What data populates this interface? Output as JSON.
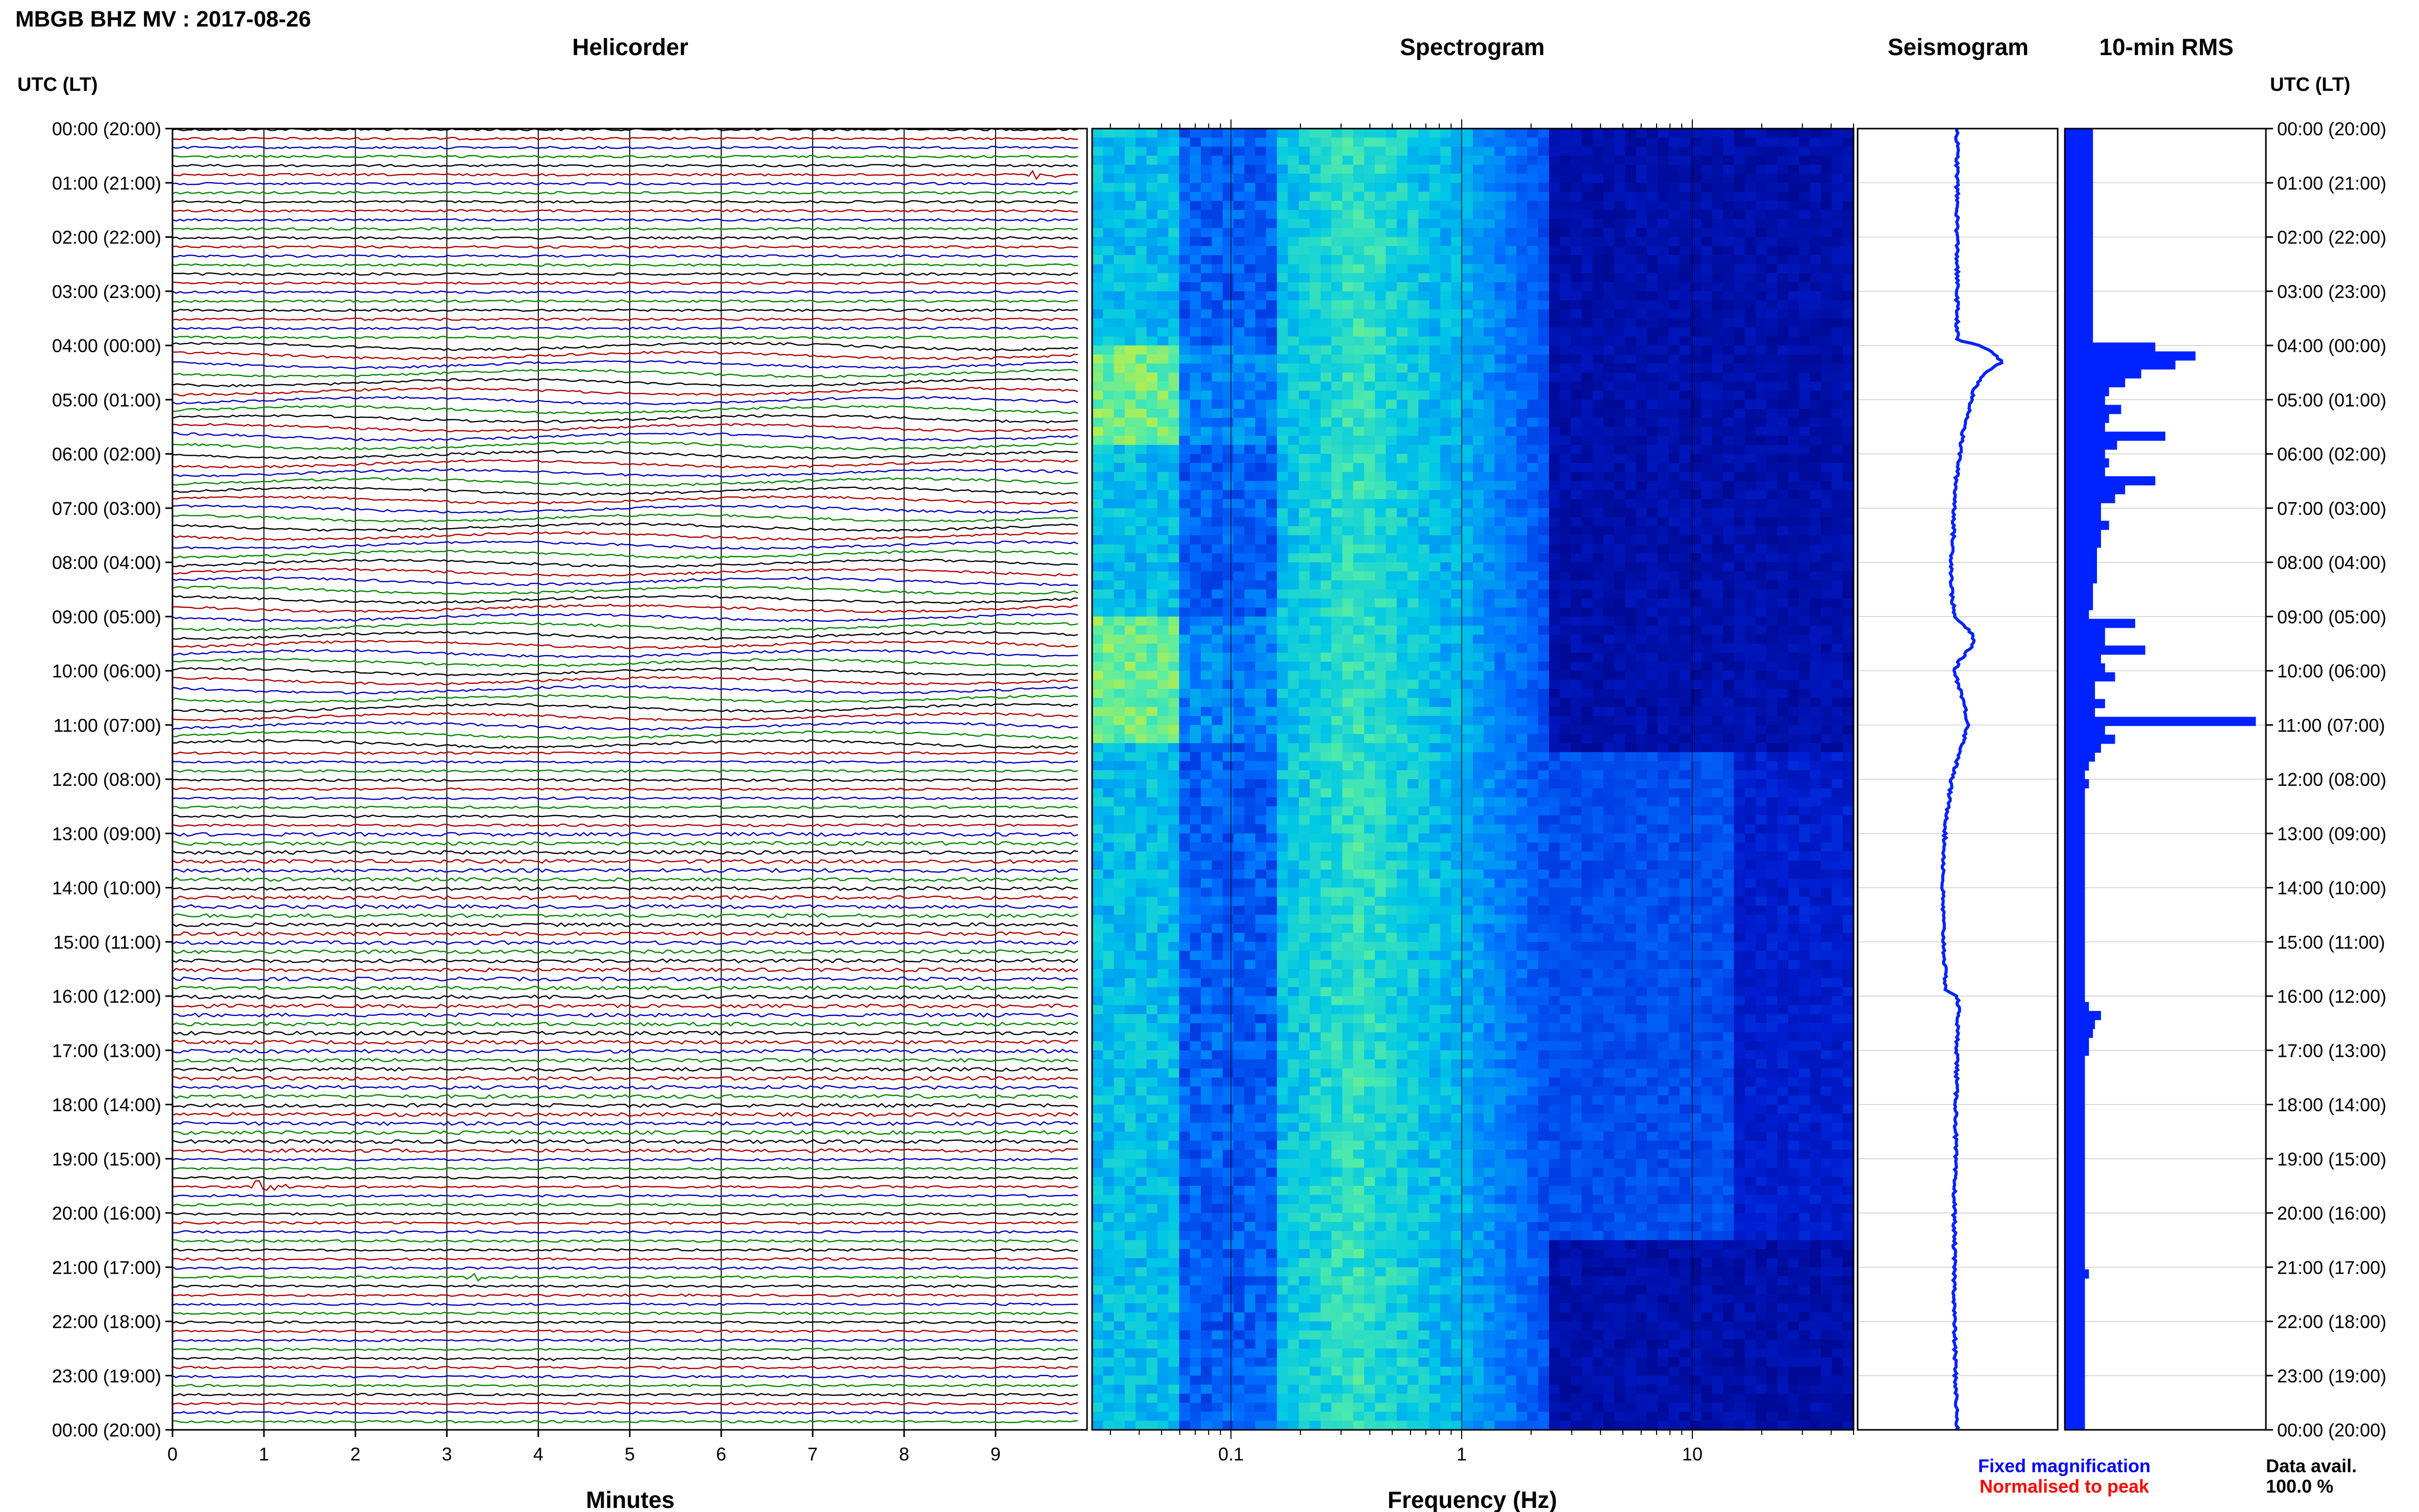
{
  "header": {
    "title": "MBGB BHZ MV : 2017-08-26",
    "utc_label_left": "UTC (LT)",
    "utc_label_right": "UTC (LT)"
  },
  "panels": {
    "helicorder": "Helicorder",
    "spectrogram": "Spectrogram",
    "seismogram": "Seismogram",
    "rms": "10-min RMS"
  },
  "footer": {
    "fixed_magnification": "Fixed magnification",
    "normalised_to_peak": "Normalised to peak",
    "data_avail_label": "Data avail.",
    "data_avail_value": "100.0 %"
  },
  "colors": {
    "trace_cycle": [
      "#000000",
      "#b00000",
      "#0000c0",
      "#008800"
    ],
    "fixed_magnification": "#0000ff",
    "normalised_to_peak": "#ff0000",
    "seismogram": "#0022ff",
    "rms": "#0022ff"
  },
  "chart_data": [
    {
      "type": "line",
      "title": "Helicorder",
      "xlabel": "Minutes",
      "x_ticks": [
        "0",
        "1",
        "2",
        "3",
        "4",
        "5",
        "6",
        "7",
        "8",
        "9"
      ],
      "xlim": [
        0,
        10
      ],
      "y_ticks": [
        "00:00 (20:00)",
        "01:00 (21:00)",
        "02:00 (22:00)",
        "03:00 (23:00)",
        "04:00 (00:00)",
        "05:00 (01:00)",
        "06:00 (02:00)",
        "07:00 (03:00)",
        "08:00 (04:00)",
        "09:00 (05:00)",
        "10:00 (06:00)",
        "11:00 (07:00)",
        "12:00 (08:00)",
        "13:00 (09:00)",
        "14:00 (10:00)",
        "15:00 (11:00)",
        "16:00 (12:00)",
        "17:00 (13:00)",
        "18:00 (14:00)",
        "19:00 (15:00)",
        "20:00 (16:00)",
        "21:00 (17:00)",
        "22:00 (18:00)",
        "23:00 (19:00)",
        "00:00 (20:00)"
      ],
      "ylim_hours": [
        0,
        24
      ],
      "trace_interval_minutes": 10,
      "events": [
        {
          "hour": 0.833,
          "minute": 9.4,
          "amplitude": 0.5
        },
        {
          "hour": 19.5,
          "minute": 0.9,
          "amplitude": 1.0
        },
        {
          "hour": 21.17,
          "minute": 3.3,
          "amplitude": 0.7
        },
        {
          "hour": 22.67,
          "minute": 4.1,
          "amplitude": 0.4
        }
      ]
    },
    {
      "type": "heatmap",
      "title": "Spectrogram",
      "xlabel": "Frequency (Hz)",
      "x_scale": "log",
      "xlim": [
        0.025,
        50
      ],
      "x_ticks": [
        "0.1",
        "1",
        "10"
      ],
      "ylim_hours": [
        0,
        24
      ]
    },
    {
      "type": "line",
      "title": "Seismogram",
      "ylim_hours": [
        0,
        24
      ],
      "x": [
        0.0,
        1.0,
        2.0,
        3.0,
        3.9,
        4.0,
        4.1,
        4.3,
        4.5,
        4.8,
        5.0,
        5.3,
        5.6,
        6.0,
        6.5,
        7.0,
        7.5,
        8.0,
        8.5,
        9.0,
        9.3,
        9.5,
        9.8,
        10.0,
        10.5,
        11.0,
        11.5,
        12.0,
        13.0,
        14.0,
        15.0,
        15.9,
        16.0,
        16.3,
        16.6,
        17.0,
        18.0,
        19.0,
        19.5,
        20.0,
        21.0,
        22.0,
        23.0,
        24.0
      ],
      "values": [
        0.0,
        0.0,
        0.0,
        0.0,
        0.0,
        0.4,
        0.6,
        0.8,
        0.5,
        0.3,
        0.25,
        0.2,
        0.1,
        0.05,
        -0.02,
        -0.05,
        -0.07,
        -0.1,
        -0.1,
        -0.05,
        0.25,
        0.3,
        0.05,
        -0.05,
        0.1,
        0.2,
        0.05,
        -0.1,
        -0.22,
        -0.26,
        -0.24,
        -0.2,
        0.0,
        0.03,
        0.0,
        0.0,
        -0.02,
        -0.03,
        -0.05,
        -0.05,
        -0.05,
        -0.05,
        -0.03,
        0.0
      ]
    },
    {
      "type": "bar",
      "title": "10-min RMS",
      "ylim_hours": [
        0,
        24
      ],
      "bin_minutes": 10,
      "values": [
        0.14,
        0.14,
        0.14,
        0.14,
        0.14,
        0.14,
        0.14,
        0.14,
        0.14,
        0.14,
        0.14,
        0.14,
        0.14,
        0.14,
        0.14,
        0.14,
        0.14,
        0.14,
        0.14,
        0.14,
        0.14,
        0.14,
        0.14,
        0.14,
        0.45,
        0.65,
        0.55,
        0.38,
        0.3,
        0.22,
        0.2,
        0.28,
        0.22,
        0.2,
        0.5,
        0.26,
        0.2,
        0.22,
        0.2,
        0.45,
        0.3,
        0.25,
        0.18,
        0.18,
        0.22,
        0.18,
        0.18,
        0.16,
        0.16,
        0.16,
        0.16,
        0.14,
        0.14,
        0.14,
        0.12,
        0.35,
        0.2,
        0.2,
        0.4,
        0.18,
        0.2,
        0.25,
        0.15,
        0.15,
        0.2,
        0.15,
        0.95,
        0.2,
        0.25,
        0.18,
        0.15,
        0.12,
        0.1,
        0.12,
        0.1,
        0.1,
        0.1,
        0.1,
        0.1,
        0.1,
        0.1,
        0.1,
        0.1,
        0.1,
        0.1,
        0.1,
        0.1,
        0.1,
        0.1,
        0.1,
        0.1,
        0.1,
        0.1,
        0.1,
        0.1,
        0.1,
        0.1,
        0.1,
        0.12,
        0.18,
        0.15,
        0.14,
        0.12,
        0.12,
        0.1,
        0.1,
        0.1,
        0.1,
        0.1,
        0.1,
        0.1,
        0.1,
        0.1,
        0.1,
        0.1,
        0.1,
        0.1,
        0.1,
        0.1,
        0.1,
        0.1,
        0.1,
        0.1,
        0.1,
        0.1,
        0.1,
        0.1,
        0.1,
        0.12,
        0.1,
        0.1,
        0.1,
        0.1,
        0.1,
        0.1,
        0.1,
        0.1,
        0.1,
        0.1,
        0.1,
        0.1,
        0.1,
        0.1,
        0.1,
        0.1,
        0.1
      ]
    }
  ]
}
